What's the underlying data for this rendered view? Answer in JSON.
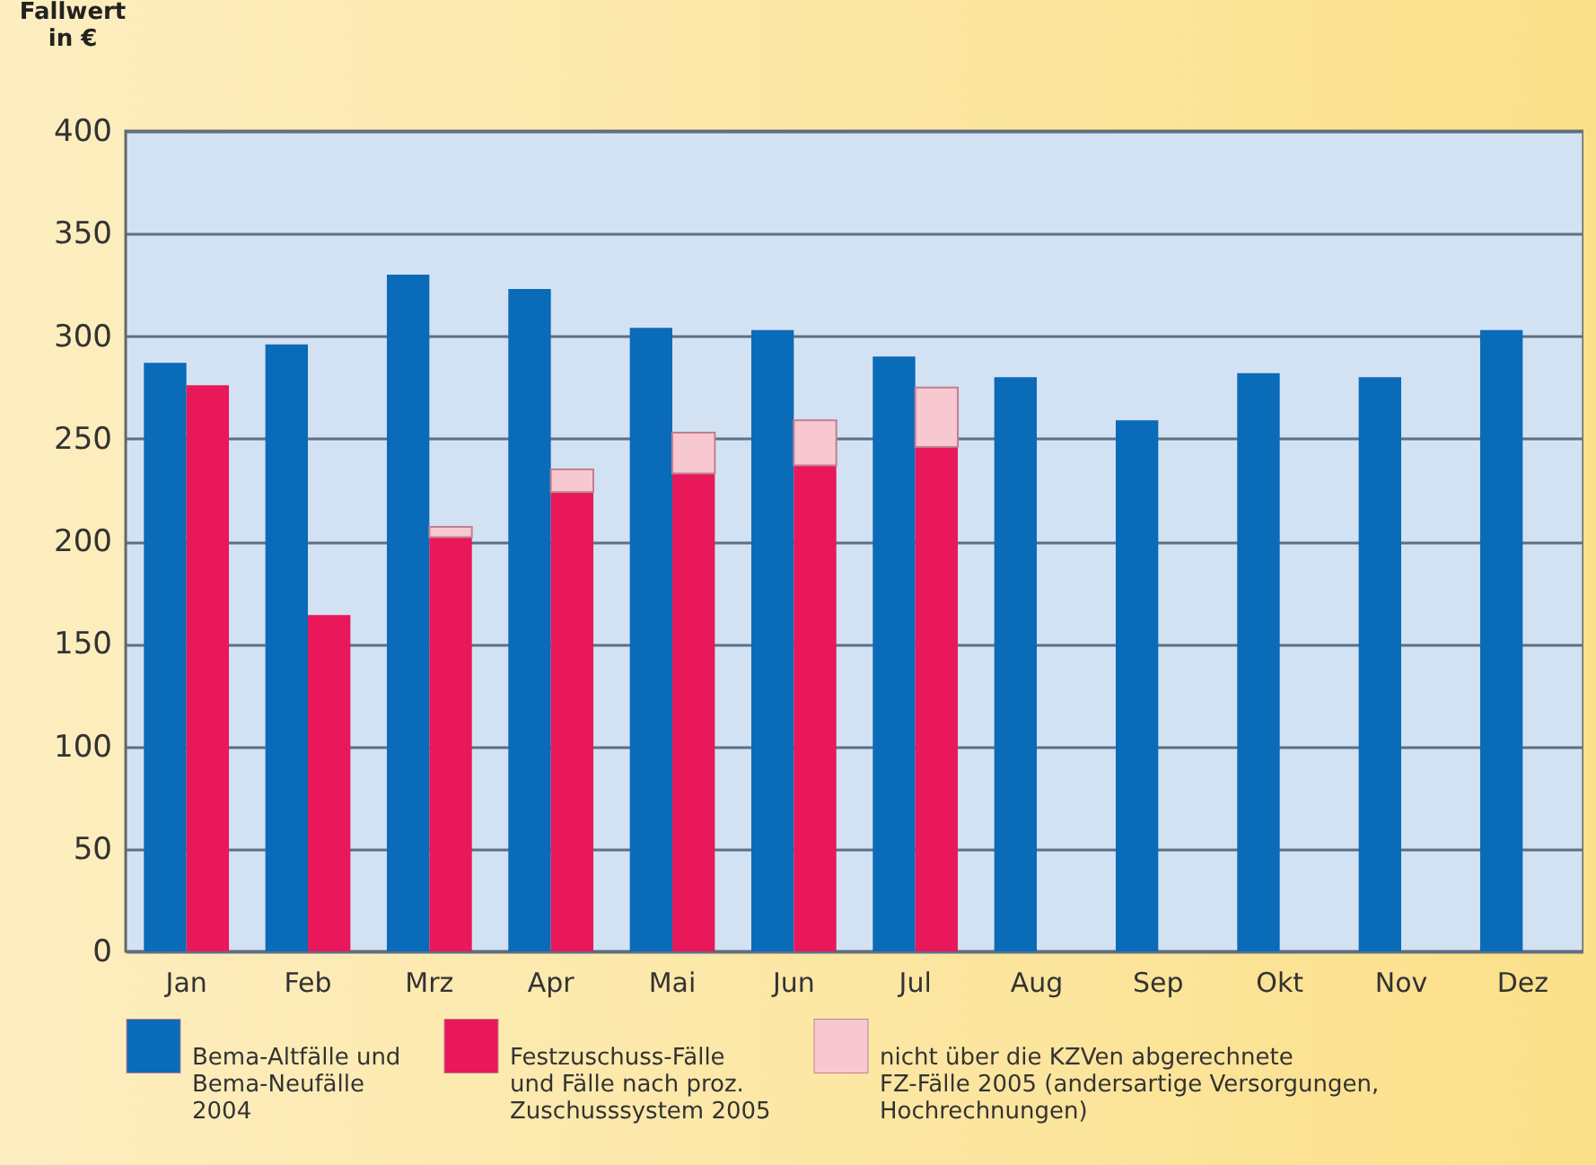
{
  "chart_data": {
    "type": "bar",
    "ylabel": "Fallwert\nin €",
    "categories": [
      "Jan",
      "Feb",
      "Mrz",
      "Apr",
      "Mai",
      "Jun",
      "Jul",
      "Aug",
      "Sep",
      "Okt",
      "Nov",
      "Dez"
    ],
    "series": [
      {
        "name": "Bema-Altfälle und\nBema-Neufälle\n2004",
        "color": "#0a6bb8",
        "values": [
          287,
          296,
          330,
          323,
          304,
          303,
          290,
          280,
          259,
          282,
          280,
          303
        ]
      },
      {
        "name": "Festzuschuss-Fälle\nund Fälle nach proz.\nZuschusssystem 2005",
        "color": "#e8185a",
        "values": [
          276,
          164,
          202,
          224,
          233,
          237,
          246,
          null,
          null,
          null,
          null,
          null
        ]
      },
      {
        "name": "nicht über die KZVen abgerechnete\nFZ-Fälle 2005 (andersartige Versorgungen,\nHochrechnungen)",
        "color": "#f8c8d0",
        "base": [
          null,
          null,
          202,
          224,
          233,
          237,
          246,
          null,
          null,
          null,
          null,
          null
        ],
        "values": [
          null,
          null,
          5,
          11,
          20,
          22,
          29,
          null,
          null,
          null,
          null,
          null
        ]
      }
    ],
    "ylim": [
      0,
      400
    ],
    "yticks": [
      0,
      50,
      100,
      150,
      200,
      250,
      300,
      350,
      400
    ],
    "grid": "y",
    "legend": "bottom"
  }
}
